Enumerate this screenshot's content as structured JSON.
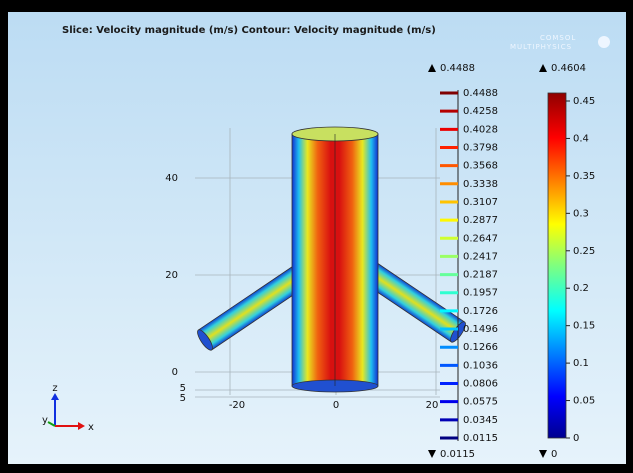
{
  "title": "Slice: Velocity magnitude (m/s)  Contour: Velocity magnitude (m/s)",
  "logo": [
    "COMSOL",
    "MULTIPHYSICS"
  ],
  "contour_legend": {
    "max": "0.4488",
    "min": "0.0115",
    "levels": [
      "0.4488",
      "0.4258",
      "0.4028",
      "0.3798",
      "0.3568",
      "0.3338",
      "0.3107",
      "0.2877",
      "0.2647",
      "0.2417",
      "0.2187",
      "0.1957",
      "0.1726",
      "0.1496",
      "0.1266",
      "0.1036",
      "0.0806",
      "0.0575",
      "0.0345",
      "0.0115"
    ]
  },
  "slice_legend": {
    "max": "0.4604",
    "min": "0",
    "ticks": [
      "0.45",
      "0.4",
      "0.35",
      "0.3",
      "0.25",
      "0.2",
      "0.15",
      "0.1",
      "0.05",
      "0"
    ]
  },
  "axes": {
    "vertical_ticks": [
      "40",
      "20",
      "0"
    ],
    "depth_ticks": [
      "5",
      "5"
    ],
    "horizontal_ticks": [
      "-20",
      "0",
      "20"
    ]
  },
  "triad": [
    "z",
    "y",
    "x"
  ]
}
